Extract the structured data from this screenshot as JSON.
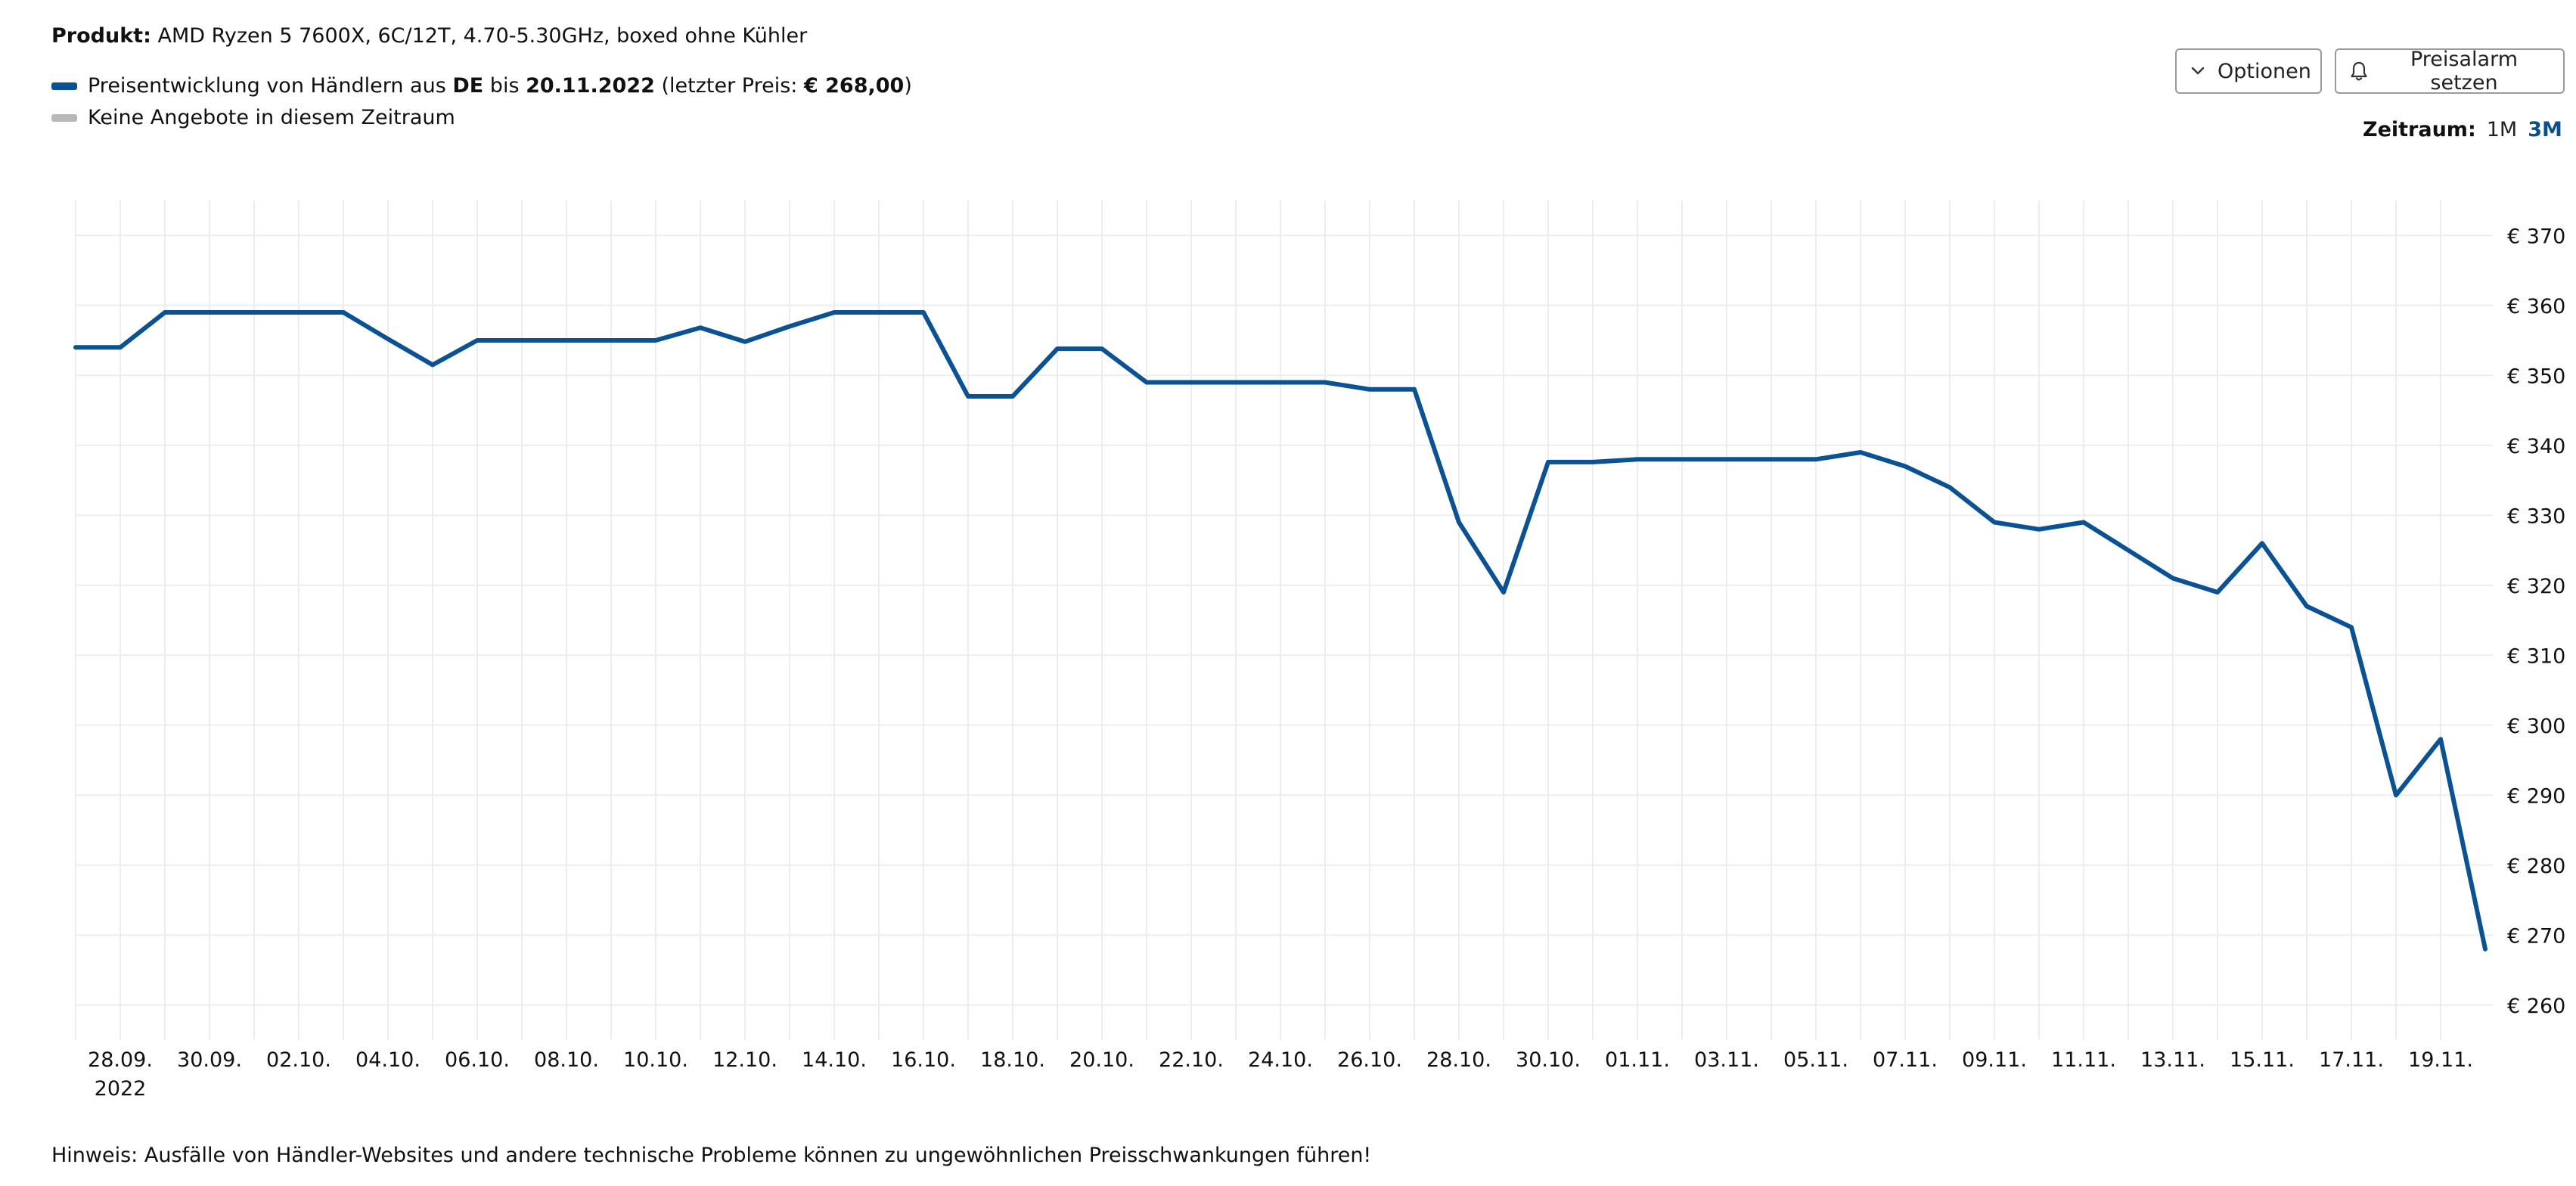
{
  "header": {
    "product_label": "Produkt:",
    "product_name": "AMD Ryzen 5 7600X, 6C/12T, 4.70-5.30GHz, boxed ohne Kühler"
  },
  "legend": {
    "line_color": "#0a5293",
    "none_color": "#b8b8b8",
    "entry1_pre": "Preisentwicklung von Händlern aus ",
    "entry1_country": "DE",
    "entry1_mid": " bis ",
    "entry1_date": "20.11.2022",
    "entry1_open": " (letzter Preis: ",
    "entry1_price": "€ 268,00",
    "entry1_close": ")",
    "entry2": "Keine Angebote in diesem Zeitraum"
  },
  "toolbar": {
    "options_label": "Optionen",
    "options_icon": "chevron-down-icon",
    "alarm_label": "Preisalarm setzen",
    "alarm_icon": "bell-icon"
  },
  "zeitraum": {
    "label": "Zeitraum:",
    "options": [
      "1M",
      "3M"
    ],
    "active": "3M"
  },
  "chart_data": {
    "type": "line",
    "title": "",
    "xlabel": "",
    "ylabel": "",
    "ylim": [
      255,
      375
    ],
    "yticks": [
      260,
      270,
      280,
      290,
      300,
      310,
      320,
      330,
      340,
      350,
      360,
      370
    ],
    "ytick_labels": [
      "€ 260",
      "€ 270",
      "€ 280",
      "€ 290",
      "€ 300",
      "€ 310",
      "€ 320",
      "€ 330",
      "€ 340",
      "€ 350",
      "€ 360",
      "€ 370"
    ],
    "xlim": [
      "2022-09-27",
      "2022-11-20"
    ],
    "xticks": [
      "2022-09-28",
      "2022-09-30",
      "2022-10-02",
      "2022-10-04",
      "2022-10-06",
      "2022-10-08",
      "2022-10-10",
      "2022-10-12",
      "2022-10-14",
      "2022-10-16",
      "2022-10-18",
      "2022-10-20",
      "2022-10-22",
      "2022-10-24",
      "2022-10-26",
      "2022-10-28",
      "2022-10-30",
      "2022-11-01",
      "2022-11-03",
      "2022-11-05",
      "2022-11-07",
      "2022-11-09",
      "2022-11-11",
      "2022-11-13",
      "2022-11-15",
      "2022-11-17",
      "2022-11-19"
    ],
    "xtick_labels": [
      "28.09.",
      "30.09.",
      "02.10.",
      "04.10.",
      "06.10.",
      "08.10.",
      "10.10.",
      "12.10.",
      "14.10.",
      "16.10.",
      "18.10.",
      "20.10.",
      "22.10.",
      "24.10.",
      "26.10.",
      "28.10.",
      "30.10.",
      "01.11.",
      "03.11.",
      "05.11.",
      "07.11.",
      "09.11.",
      "11.11.",
      "13.11.",
      "15.11.",
      "17.11.",
      "19.11."
    ],
    "x_sublabel": "2022",
    "grid": true,
    "series": [
      {
        "color": "#0a5293",
        "x": [
          "2022-09-27",
          "2022-09-28",
          "2022-09-29",
          "2022-09-30",
          "2022-10-01",
          "2022-10-02",
          "2022-10-03",
          "2022-10-04",
          "2022-10-05",
          "2022-10-06",
          "2022-10-07",
          "2022-10-08",
          "2022-10-09",
          "2022-10-10",
          "2022-10-11",
          "2022-10-12",
          "2022-10-13",
          "2022-10-14",
          "2022-10-15",
          "2022-10-16",
          "2022-10-17",
          "2022-10-18",
          "2022-10-19",
          "2022-10-20",
          "2022-10-21",
          "2022-10-22",
          "2022-10-23",
          "2022-10-24",
          "2022-10-25",
          "2022-10-26",
          "2022-10-27",
          "2022-10-28",
          "2022-10-29",
          "2022-10-30",
          "2022-10-31",
          "2022-11-01",
          "2022-11-02",
          "2022-11-03",
          "2022-11-04",
          "2022-11-05",
          "2022-11-06",
          "2022-11-07",
          "2022-11-08",
          "2022-11-09",
          "2022-11-10",
          "2022-11-11",
          "2022-11-12",
          "2022-11-13",
          "2022-11-14",
          "2022-11-15",
          "2022-11-16",
          "2022-11-17",
          "2022-11-18",
          "2022-11-19",
          "2022-11-20"
        ],
        "values": [
          354,
          354,
          359,
          359,
          359,
          359,
          359,
          355.2,
          351.5,
          355,
          355,
          355,
          355,
          355,
          356.8,
          354.8,
          357,
          359,
          359,
          359,
          347,
          347,
          353.8,
          353.8,
          349,
          349,
          349,
          349,
          349,
          348,
          348,
          329,
          319,
          337.6,
          337.6,
          338,
          338,
          338,
          338,
          338,
          339,
          337,
          334,
          329,
          328,
          329,
          325,
          321,
          319,
          326,
          317,
          314,
          290,
          298,
          268
        ]
      }
    ]
  },
  "footer": {
    "note": "Hinweis: Ausfälle von Händler-Websites und andere technische Probleme können zu ungewöhnlichen Preisschwankungen führen!"
  }
}
